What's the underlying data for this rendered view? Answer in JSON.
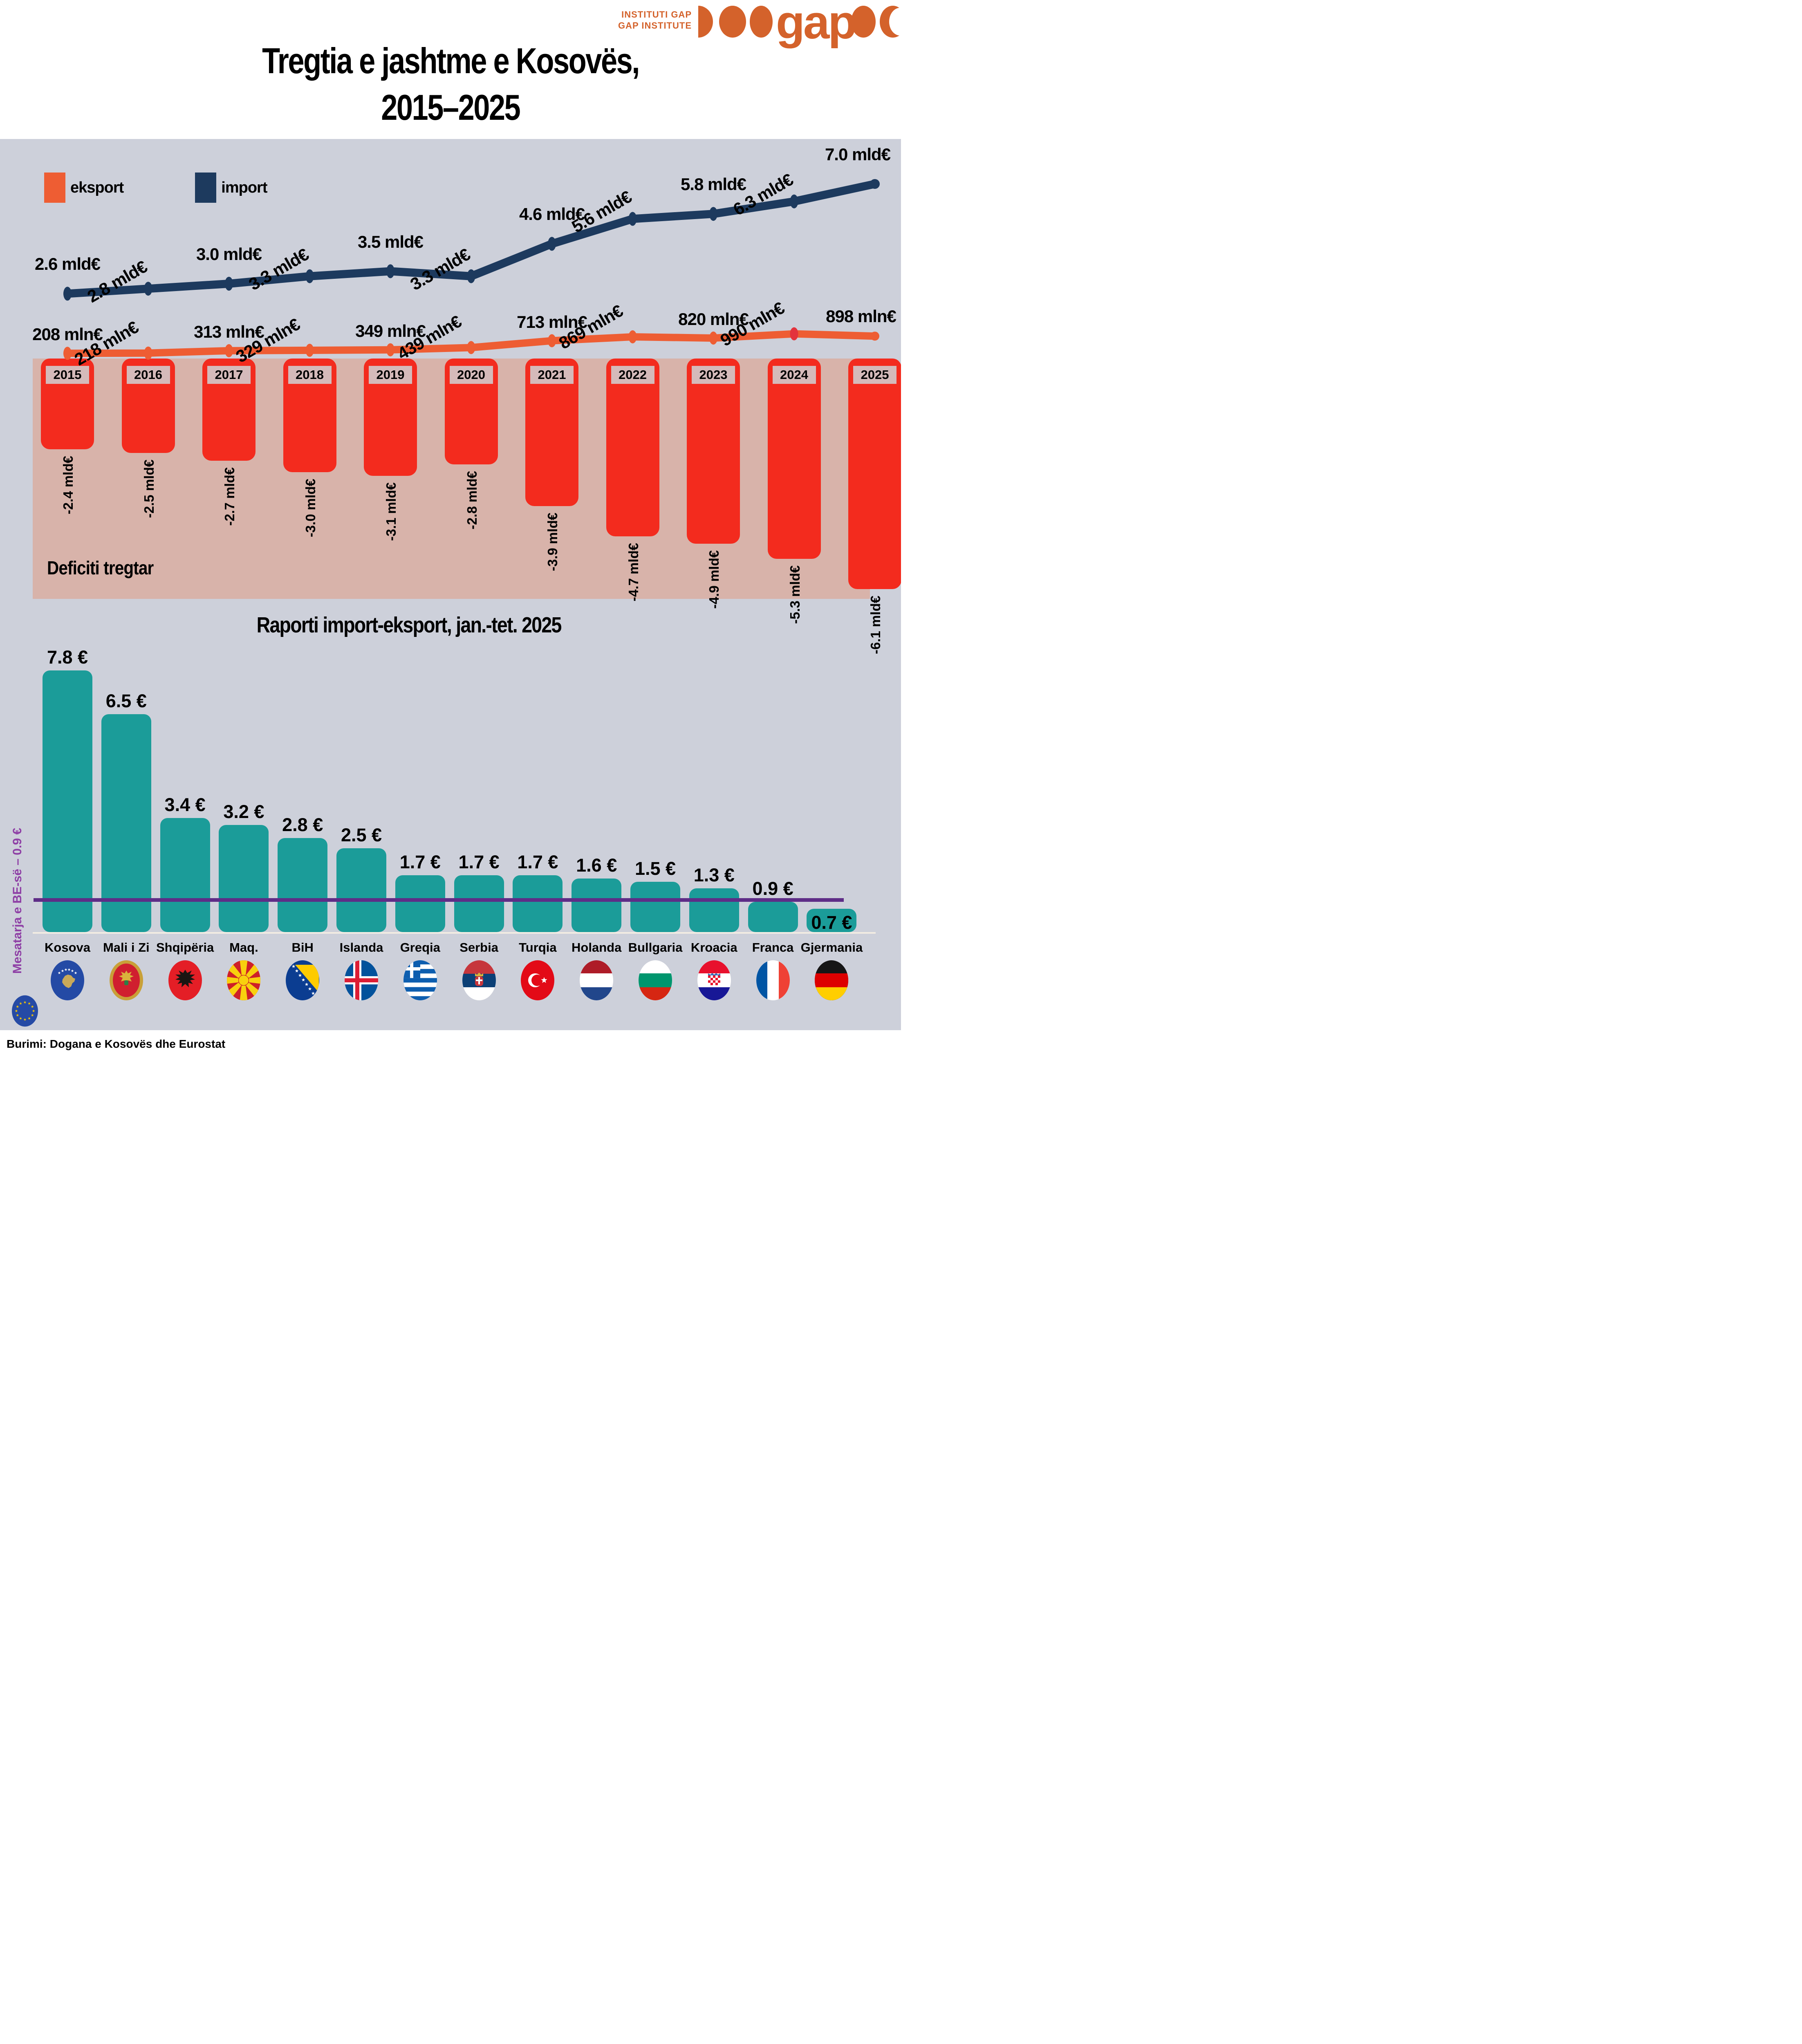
{
  "header": {
    "institute_line1": "INSTITUTI GAP",
    "institute_line2": "GAP INSTITUTE",
    "logo_word": "gap",
    "title_line1": "Tregtia e jashtme e Kosovës,",
    "title_line2": "2015–2025"
  },
  "legend": {
    "eksport": "eksport",
    "import": "import"
  },
  "colors": {
    "background": "#cdd0da",
    "band_pink": "#d8b3aa",
    "deficit_red": "#f32b1e",
    "import_navy": "#1d3a5e",
    "export_orange": "#ee5d33",
    "export_marker_highlight": "#e3333d",
    "teal_bar": "#1b9c99",
    "purple_line": "#5e2d87",
    "purple_text": "#8e3fa5",
    "logo_orange": "#d4622b",
    "year_chip": "#d5baba"
  },
  "chart_data": [
    {
      "type": "line",
      "title": "Tregtia e jashtme e Kosovës, 2015–2025",
      "categories": [
        "2015",
        "2016",
        "2017",
        "2018",
        "2019",
        "2020",
        "2021",
        "2022",
        "2023",
        "2024",
        "2025"
      ],
      "series": [
        {
          "name": "import",
          "unit": "mld€",
          "color": "#1d3a5e",
          "values": [
            2.6,
            2.8,
            3.0,
            3.3,
            3.5,
            3.3,
            4.6,
            5.6,
            5.8,
            6.3,
            7.0
          ],
          "labels": [
            "2.6 mld€",
            "2.8 mld€",
            "3.0 mld€",
            "3.3 mld€",
            "3.5 mld€",
            "3.3 mld€",
            "4.6 mld€",
            "5.6 mld€",
            "5.8 mld€",
            "6.3 mld€",
            "7.0 mld€"
          ]
        },
        {
          "name": "eksport",
          "unit": "mln€",
          "color": "#ee5d33",
          "values": [
            208,
            218,
            313,
            329,
            349,
            439,
            713,
            869,
            820,
            990,
            898
          ],
          "labels": [
            "208 mln€",
            "218 mln€",
            "313 mln€",
            "329 mln€",
            "349 mln€",
            "439 mln€",
            "713 mln€",
            "869 mln€",
            "820 mln€",
            "990 mln€",
            "898 mln€"
          ],
          "highlight_marker_index": 9
        }
      ],
      "deficit": {
        "caption": "Deficiti tregtar",
        "values": [
          -2.4,
          -2.5,
          -2.7,
          -3.0,
          -3.1,
          -2.8,
          -3.9,
          -4.7,
          -4.9,
          -5.3,
          -6.1
        ],
        "labels": [
          "-2.4 mld€",
          "-2.5 mld€",
          "-2.7 mld€",
          "-3.0 mld€",
          "-3.1 mld€",
          "-2.8 mld€",
          "-3.9 mld€",
          "-4.7 mld€",
          "-4.9 mld€",
          "-5.3 mld€",
          "-6.1 mld€"
        ]
      },
      "grid": false,
      "legend_position": "top-left"
    },
    {
      "type": "bar",
      "title": "Raporti import-eksport, jan.-tet. 2025",
      "categories": [
        "Kosova",
        "Mali i Zi",
        "Shqipëria",
        "Maq.",
        "BiH",
        "Islanda",
        "Greqia",
        "Serbia",
        "Turqia",
        "Holanda",
        "Bullgaria",
        "Kroacia",
        "Franca",
        "Gjermania"
      ],
      "values": [
        7.8,
        6.5,
        3.4,
        3.2,
        2.8,
        2.5,
        1.7,
        1.7,
        1.7,
        1.6,
        1.5,
        1.3,
        0.9,
        0.7
      ],
      "labels": [
        "7.8 €",
        "6.5 €",
        "3.4 €",
        "3.2 €",
        "2.8 €",
        "2.5 €",
        "1.7 €",
        "1.7 €",
        "1.7 €",
        "1.6 €",
        "1.5 €",
        "1.3 €",
        "0.9 €",
        "0.7 €"
      ],
      "flags": [
        "kosova",
        "malizi",
        "shqiperia",
        "maq",
        "bih",
        "islanda",
        "greqia",
        "serbia",
        "turqia",
        "holanda",
        "bullgaria",
        "kroacia",
        "franca",
        "gjermania"
      ],
      "reference_line": {
        "label": "Mesatarja e BE-së – 0.9 €",
        "value": 0.9,
        "flag": "eu"
      },
      "ylim": [
        0,
        8.5
      ],
      "grid": false
    }
  ],
  "footer": "Burimi: Dogana e Kosovës dhe Eurostat"
}
